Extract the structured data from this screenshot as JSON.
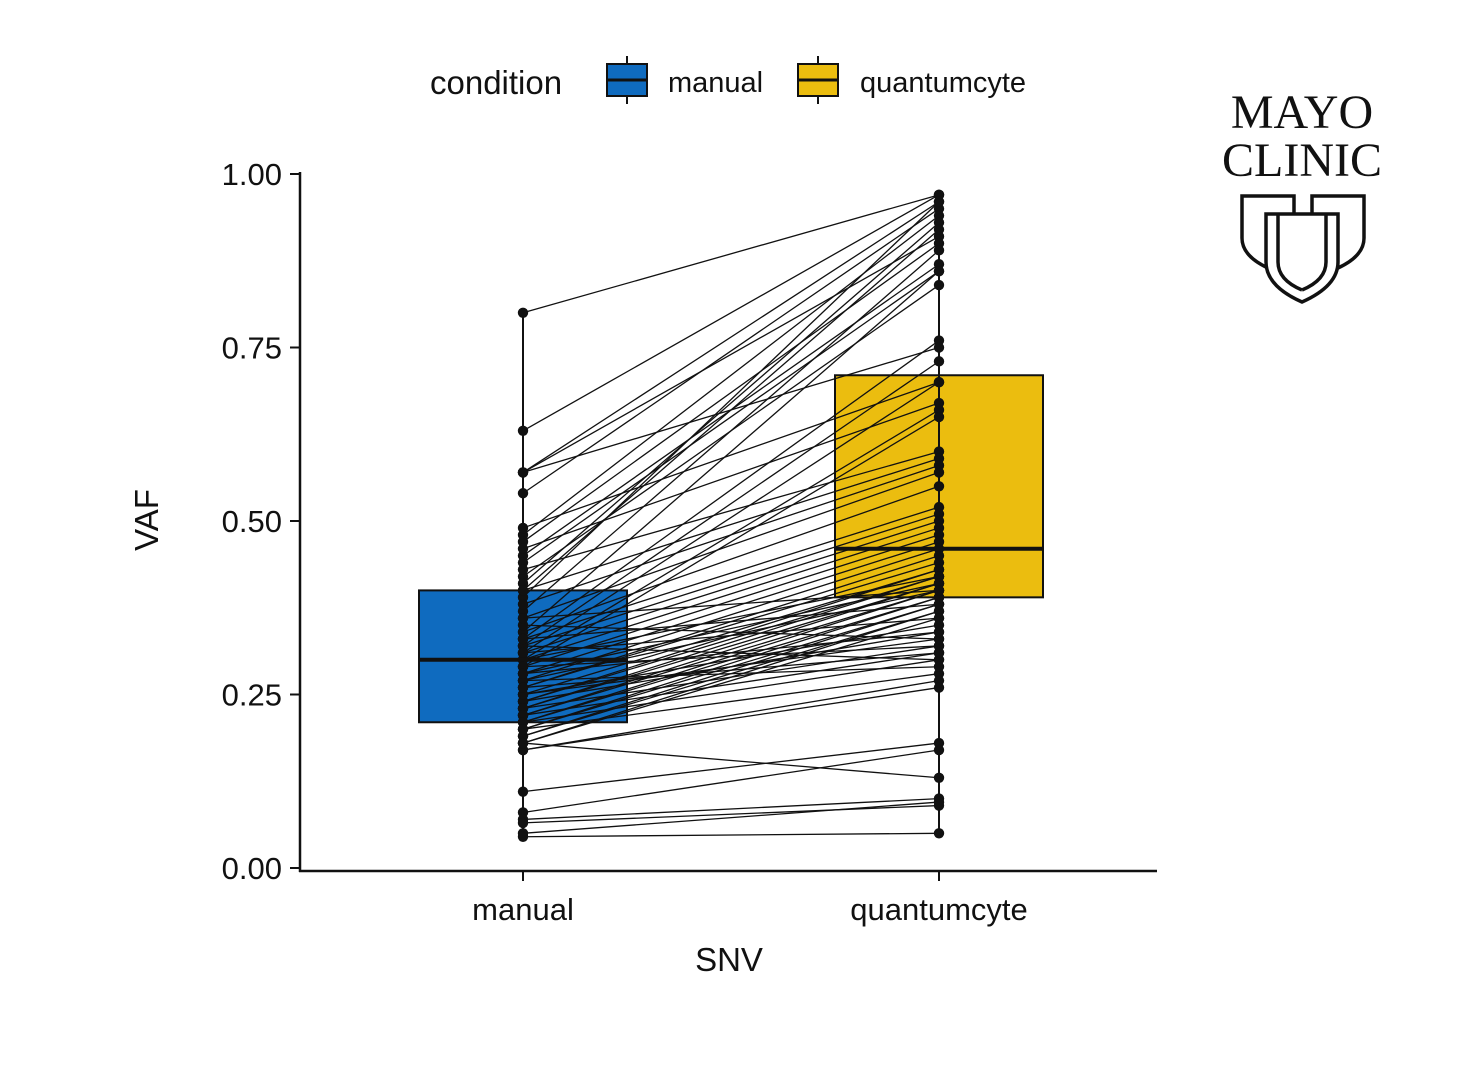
{
  "chart_data": {
    "type": "boxplot-paired",
    "xlabel": "SNV",
    "ylabel": "VAF",
    "ylim": [
      0,
      1
    ],
    "yticks": [
      "0.00",
      "0.25",
      "0.50",
      "0.75",
      "1.00"
    ],
    "categories": [
      "manual",
      "quantumcyte"
    ],
    "legend": {
      "title": "condition",
      "position": "top",
      "items": [
        {
          "label": "manual",
          "color": "#0f6bbf"
        },
        {
          "label": "quantumcyte",
          "color": "#ebbd0f"
        }
      ]
    },
    "boxes": [
      {
        "category": "manual",
        "q1": 0.21,
        "median": 0.3,
        "q3": 0.4,
        "color": "#0f6bbf"
      },
      {
        "category": "quantumcyte",
        "q1": 0.39,
        "median": 0.46,
        "q3": 0.71,
        "color": "#ebbd0f"
      }
    ],
    "pairs": [
      [
        0.8,
        0.97
      ],
      [
        0.63,
        0.97
      ],
      [
        0.57,
        0.96
      ],
      [
        0.57,
        0.91
      ],
      [
        0.54,
        0.95
      ],
      [
        0.48,
        0.94
      ],
      [
        0.47,
        0.9
      ],
      [
        0.45,
        0.87
      ],
      [
        0.44,
        0.86
      ],
      [
        0.42,
        0.84
      ],
      [
        0.41,
        0.93
      ],
      [
        0.4,
        0.92
      ],
      [
        0.39,
        0.96
      ],
      [
        0.37,
        0.89
      ],
      [
        0.34,
        0.86
      ],
      [
        0.33,
        0.76
      ],
      [
        0.32,
        0.73
      ],
      [
        0.31,
        0.7
      ],
      [
        0.3,
        0.66
      ],
      [
        0.29,
        0.65
      ],
      [
        0.57,
        0.75
      ],
      [
        0.49,
        0.7
      ],
      [
        0.46,
        0.67
      ],
      [
        0.43,
        0.6
      ],
      [
        0.4,
        0.59
      ],
      [
        0.38,
        0.58
      ],
      [
        0.36,
        0.57
      ],
      [
        0.34,
        0.55
      ],
      [
        0.33,
        0.52
      ],
      [
        0.32,
        0.51
      ],
      [
        0.31,
        0.5
      ],
      [
        0.3,
        0.49
      ],
      [
        0.29,
        0.48
      ],
      [
        0.28,
        0.47
      ],
      [
        0.27,
        0.46
      ],
      [
        0.26,
        0.45
      ],
      [
        0.26,
        0.44
      ],
      [
        0.25,
        0.43
      ],
      [
        0.24,
        0.43
      ],
      [
        0.24,
        0.42
      ],
      [
        0.23,
        0.42
      ],
      [
        0.23,
        0.41
      ],
      [
        0.22,
        0.41
      ],
      [
        0.22,
        0.4
      ],
      [
        0.21,
        0.4
      ],
      [
        0.21,
        0.39
      ],
      [
        0.2,
        0.39
      ],
      [
        0.2,
        0.38
      ],
      [
        0.19,
        0.38
      ],
      [
        0.19,
        0.37
      ],
      [
        0.18,
        0.37
      ],
      [
        0.18,
        0.36
      ],
      [
        0.3,
        0.42
      ],
      [
        0.28,
        0.41
      ],
      [
        0.27,
        0.4
      ],
      [
        0.25,
        0.35
      ],
      [
        0.24,
        0.34
      ],
      [
        0.23,
        0.32
      ],
      [
        0.22,
        0.31
      ],
      [
        0.21,
        0.3
      ],
      [
        0.2,
        0.28
      ],
      [
        0.17,
        0.27
      ],
      [
        0.17,
        0.26
      ],
      [
        0.18,
        0.13
      ],
      [
        0.11,
        0.18
      ],
      [
        0.08,
        0.17
      ],
      [
        0.07,
        0.1
      ],
      [
        0.065,
        0.09
      ],
      [
        0.05,
        0.095
      ],
      [
        0.045,
        0.05
      ],
      [
        0.35,
        0.33
      ],
      [
        0.32,
        0.3
      ],
      [
        0.29,
        0.32
      ],
      [
        0.27,
        0.29
      ],
      [
        0.25,
        0.33
      ],
      [
        0.26,
        0.31
      ],
      [
        0.28,
        0.34
      ],
      [
        0.31,
        0.36
      ],
      [
        0.33,
        0.38
      ],
      [
        0.36,
        0.4
      ]
    ]
  },
  "logo": {
    "line1": "MAYO",
    "line2": "CLINIC"
  }
}
